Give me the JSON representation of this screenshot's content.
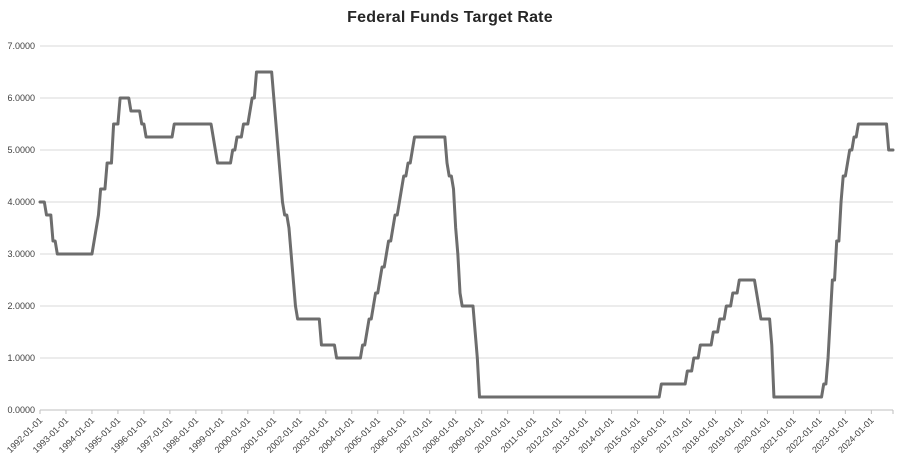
{
  "chart_data": {
    "type": "line",
    "title": "Federal Funds Target Rate",
    "xlabel": "",
    "ylabel": "",
    "legend": "none",
    "grid": true,
    "ylim": [
      0,
      7
    ],
    "y_tick_labels": [
      "0.0000",
      "1.0000",
      "2.0000",
      "3.0000",
      "4.0000",
      "5.0000",
      "6.0000",
      "7.0000"
    ],
    "x_tick_labels": [
      "1992-01-01",
      "1993-01-01",
      "1994-01-01",
      "1995-01-01",
      "1996-01-01",
      "1997-01-01",
      "1998-01-01",
      "1999-01-01",
      "2000-01-01",
      "2001-01-01",
      "2002-01-01",
      "2003-01-01",
      "2004-01-01",
      "2005-01-01",
      "2006-01-01",
      "2007-01-01",
      "2008-01-01",
      "2009-01-01",
      "2010-01-01",
      "2011-01-01",
      "2012-01-01",
      "2013-01-01",
      "2014-01-01",
      "2015-01-01",
      "2016-01-01",
      "2017-01-01",
      "2018-01-01",
      "2019-01-01",
      "2020-01-01",
      "2021-01-01",
      "2022-01-01",
      "2023-01-01",
      "2024-01-01"
    ],
    "series_name": "Federal Funds Target Rate",
    "start_month": "1992-01",
    "end_month": "2024-11",
    "rate_changes": [
      [
        "1992-01",
        4.0
      ],
      [
        "1992-04",
        3.75
      ],
      [
        "1992-07",
        3.25
      ],
      [
        "1992-09",
        3.0
      ],
      [
        "1994-02",
        3.25
      ],
      [
        "1994-03",
        3.5
      ],
      [
        "1994-04",
        3.75
      ],
      [
        "1994-05",
        4.25
      ],
      [
        "1994-08",
        4.75
      ],
      [
        "1994-11",
        5.5
      ],
      [
        "1995-02",
        6.0
      ],
      [
        "1995-07",
        5.75
      ],
      [
        "1995-12",
        5.5
      ],
      [
        "1996-02",
        5.25
      ],
      [
        "1997-03",
        5.5
      ],
      [
        "1998-09",
        5.25
      ],
      [
        "1998-10",
        5.0
      ],
      [
        "1998-11",
        4.75
      ],
      [
        "1999-06",
        5.0
      ],
      [
        "1999-08",
        5.25
      ],
      [
        "1999-11",
        5.5
      ],
      [
        "2000-02",
        5.75
      ],
      [
        "2000-03",
        6.0
      ],
      [
        "2000-05",
        6.5
      ],
      [
        "2001-01",
        6.0
      ],
      [
        "2001-02",
        5.5
      ],
      [
        "2001-03",
        5.0
      ],
      [
        "2001-04",
        4.5
      ],
      [
        "2001-05",
        4.0
      ],
      [
        "2001-06",
        3.75
      ],
      [
        "2001-08",
        3.5
      ],
      [
        "2001-09",
        3.0
      ],
      [
        "2001-10",
        2.5
      ],
      [
        "2001-11",
        2.0
      ],
      [
        "2001-12",
        1.75
      ],
      [
        "2002-11",
        1.25
      ],
      [
        "2003-06",
        1.0
      ],
      [
        "2004-06",
        1.25
      ],
      [
        "2004-08",
        1.5
      ],
      [
        "2004-09",
        1.75
      ],
      [
        "2004-11",
        2.0
      ],
      [
        "2004-12",
        2.25
      ],
      [
        "2005-02",
        2.5
      ],
      [
        "2005-03",
        2.75
      ],
      [
        "2005-05",
        3.0
      ],
      [
        "2005-06",
        3.25
      ],
      [
        "2005-08",
        3.5
      ],
      [
        "2005-09",
        3.75
      ],
      [
        "2005-11",
        4.0
      ],
      [
        "2005-12",
        4.25
      ],
      [
        "2006-01",
        4.5
      ],
      [
        "2006-03",
        4.75
      ],
      [
        "2006-05",
        5.0
      ],
      [
        "2006-06",
        5.25
      ],
      [
        "2007-09",
        4.75
      ],
      [
        "2007-10",
        4.5
      ],
      [
        "2007-12",
        4.25
      ],
      [
        "2008-01",
        3.5
      ],
      [
        "2008-02",
        3.0
      ],
      [
        "2008-03",
        2.25
      ],
      [
        "2008-04",
        2.0
      ],
      [
        "2008-10",
        1.5
      ],
      [
        "2008-11",
        1.0
      ],
      [
        "2008-12",
        0.25
      ],
      [
        "2015-12",
        0.5
      ],
      [
        "2016-12",
        0.75
      ],
      [
        "2017-03",
        1.0
      ],
      [
        "2017-06",
        1.25
      ],
      [
        "2017-12",
        1.5
      ],
      [
        "2018-03",
        1.75
      ],
      [
        "2018-06",
        2.0
      ],
      [
        "2018-09",
        2.25
      ],
      [
        "2018-12",
        2.5
      ],
      [
        "2019-08",
        2.25
      ],
      [
        "2019-09",
        2.0
      ],
      [
        "2019-10",
        1.75
      ],
      [
        "2020-03",
        1.25
      ],
      [
        "2020-04",
        0.25
      ],
      [
        "2022-03",
        0.5
      ],
      [
        "2022-05",
        1.0
      ],
      [
        "2022-06",
        1.75
      ],
      [
        "2022-07",
        2.5
      ],
      [
        "2022-09",
        3.25
      ],
      [
        "2022-11",
        4.0
      ],
      [
        "2022-12",
        4.5
      ],
      [
        "2023-02",
        4.75
      ],
      [
        "2023-03",
        5.0
      ],
      [
        "2023-05",
        5.25
      ],
      [
        "2023-07",
        5.5
      ],
      [
        "2024-09",
        5.0
      ]
    ],
    "colors": {
      "line": "#6d6d6d",
      "grid": "#d9d9d9",
      "axis": "#bfbfbf",
      "tick_label": "#404040",
      "title": "#262626",
      "background": "#ffffff"
    }
  }
}
